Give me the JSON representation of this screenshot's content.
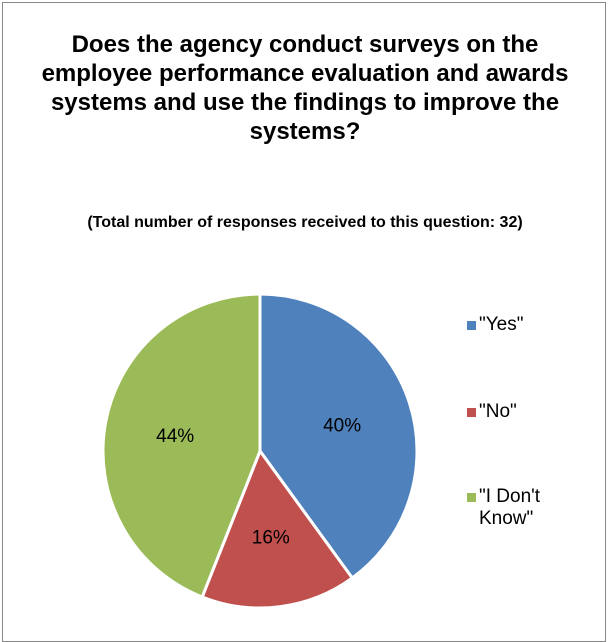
{
  "chart_data": {
    "type": "pie",
    "title": "Does the agency conduct surveys on the employee performance evaluation and awards systems and use the findings to improve the systems?",
    "subtitle": "(Total number of responses received to this question:  32)",
    "categories": [
      "\"Yes\"",
      "\"No\"",
      "\"I Don't Know\""
    ],
    "values": [
      40,
      16,
      44
    ],
    "data_labels": [
      "40%",
      "16%",
      "44%"
    ],
    "colors": [
      "#4F81BD",
      "#C0504D",
      "#9BBB59"
    ],
    "legend_position": "right"
  }
}
